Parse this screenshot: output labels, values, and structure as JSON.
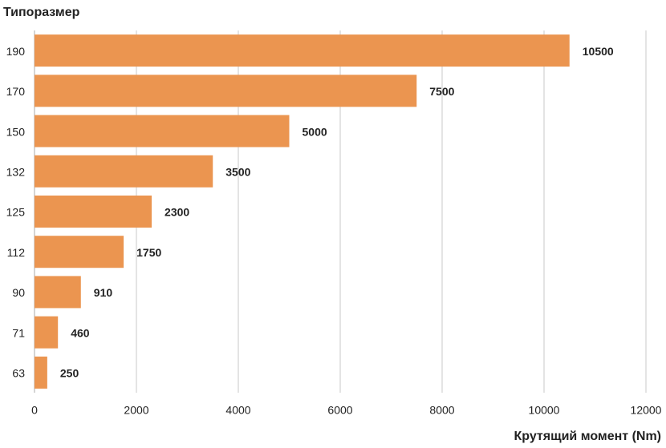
{
  "chart_data": {
    "type": "barh",
    "y_axis_label": "Типоразмер",
    "x_axis_label": "Крутящий момент (Nm)",
    "categories": [
      "190",
      "170",
      "150",
      "132",
      "125",
      "112",
      "90",
      "71",
      "63"
    ],
    "values": [
      10500,
      7500,
      5000,
      3500,
      2300,
      1750,
      910,
      460,
      250
    ],
    "color": "#eb9550",
    "xlim": [
      0,
      12000
    ],
    "xticks": [
      0,
      2000,
      4000,
      6000,
      8000,
      10000,
      12000
    ],
    "grid": true
  }
}
